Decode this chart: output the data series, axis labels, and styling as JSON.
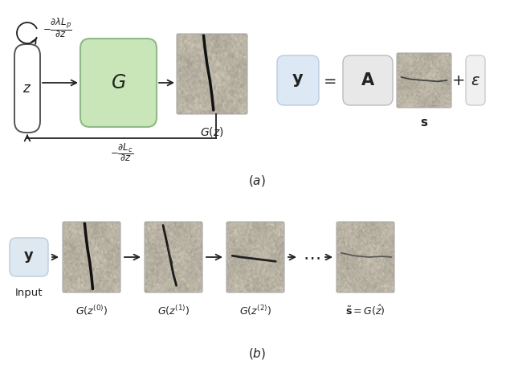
{
  "fig_width": 6.4,
  "fig_height": 4.58,
  "bg_color": "#ffffff",
  "green_box_color": "#c8e6b8",
  "green_box_edge": "#90b888",
  "y_box_color": "#dce8f4",
  "y_box_edge": "#b8cce0",
  "A_box_color": "#e8e8e8",
  "A_box_edge": "#bbbbbb",
  "eps_box_color": "#f0f0f0",
  "eps_box_edge": "#cccccc",
  "z_box_color": "#ffffff",
  "z_box_edge": "#555555",
  "arrow_color": "#222222",
  "text_color": "#222222",
  "crack_bg": "#d4cfc0",
  "crack_bg_light": "#dedad0"
}
